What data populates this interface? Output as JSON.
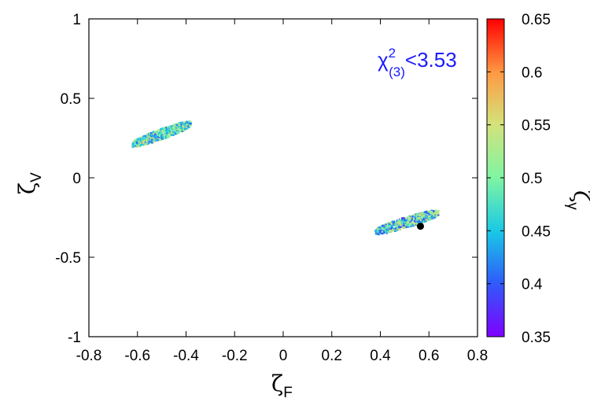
{
  "chart_data": {
    "type": "scatter",
    "title": "",
    "xlabel": {
      "symbol": "ζ",
      "subscript": "F"
    },
    "ylabel": {
      "symbol": "ζ",
      "subscript": "V"
    },
    "colorbar_label": {
      "symbol": "ζ",
      "subscript": "γ"
    },
    "xlim": [
      -0.8,
      0.8
    ],
    "ylim": [
      -1,
      1
    ],
    "xticks": [
      "-0.8",
      "-0.6",
      "-0.4",
      "-0.2",
      "0",
      "0.2",
      "0.4",
      "0.6",
      "0.8"
    ],
    "yticks": [
      "-1",
      "-0.5",
      "0",
      "0.5",
      "1"
    ],
    "color_range": [
      0.35,
      0.65
    ],
    "colorbar_ticks": [
      "0.35",
      "0.4",
      "0.45",
      "0.5",
      "0.55",
      "0.6",
      "0.65"
    ],
    "colormap": "rainbow",
    "annotation": {
      "base": "χ",
      "sup": "2",
      "sub": "(3)",
      "rest": "<3.53",
      "color": "#1a1aff"
    },
    "clusters": [
      {
        "name": "",
        "x_range": [
          -0.62,
          -0.38
        ],
        "y_center_at_x_min": 0.21,
        "y_center_at_x_max": 0.34,
        "half_width": 0.035,
        "color_range": [
          0.4,
          0.56
        ]
      },
      {
        "name": "",
        "x_range": [
          0.38,
          0.64
        ],
        "y_center_at_x_min": -0.34,
        "y_center_at_x_max": -0.22,
        "half_width": 0.035,
        "color_range": [
          0.38,
          0.56
        ]
      }
    ],
    "best_fit_point": {
      "x": 0.565,
      "y": -0.305,
      "color": "#000000"
    },
    "grid": false,
    "legend": "none"
  }
}
